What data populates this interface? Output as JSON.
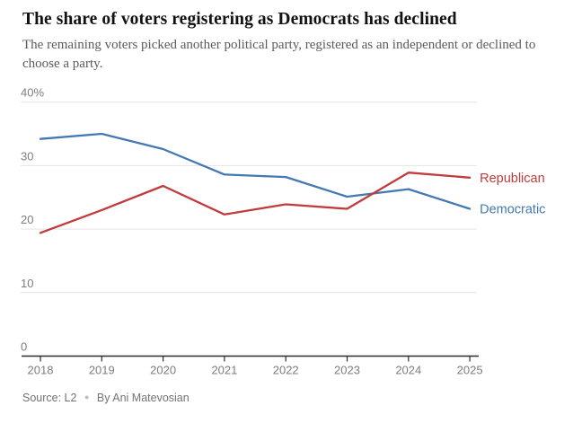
{
  "chart_data": {
    "type": "line",
    "title": "The share of voters registering as Democrats has declined",
    "subtitle": "The remaining voters picked another political party, registered as an independent or declined to choose a party.",
    "x": [
      "2018",
      "2019",
      "2020",
      "2021",
      "2022",
      "2023",
      "2024",
      "2025"
    ],
    "series": [
      {
        "name": "Republican",
        "color": "#c23b3c",
        "values": [
          19.4,
          23.0,
          26.8,
          22.3,
          23.9,
          23.2,
          28.9,
          28.1
        ]
      },
      {
        "name": "Democratic",
        "color": "#4379b2",
        "values": [
          34.2,
          35.0,
          32.6,
          28.6,
          28.2,
          25.1,
          26.3,
          23.2
        ]
      }
    ],
    "xlabel": "",
    "ylabel": "",
    "ylim": [
      0,
      40
    ],
    "yticks": [
      0,
      10,
      20,
      30,
      40
    ],
    "ytick_labels": [
      "0",
      "10",
      "20",
      "30",
      "40%"
    ],
    "grid": "horizontal",
    "legend_position": "right-of-line-ends",
    "axis_color": "#2b2b2b",
    "gridline_color": "#e4e4e4",
    "tick_label_color": "#7d7d7d"
  },
  "source": {
    "label": "Source: L2",
    "separator": "●",
    "byline": "By Ani Matevosian"
  }
}
